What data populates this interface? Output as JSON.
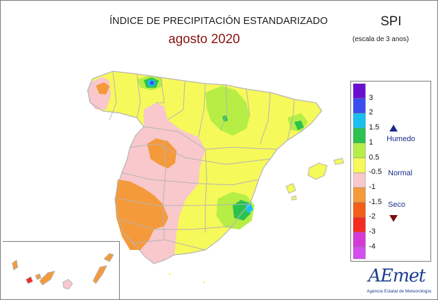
{
  "header": {
    "title": "ÍNDICE DE PRECIPITACIÓN ESTANDARIZADO",
    "subtitle": "agosto 2020",
    "index_name": "SPI",
    "scale": "(escala de 3 anos)"
  },
  "legend": {
    "classes": [
      {
        "label": "3",
        "color": "#6a0fd0"
      },
      {
        "label": "2",
        "color": "#3a4df0"
      },
      {
        "label": "1.5",
        "color": "#18c0f0"
      },
      {
        "label": "1",
        "color": "#2bc24e"
      },
      {
        "label": "0.5",
        "color": "#b6ee46"
      },
      {
        "label": "-0.5",
        "color": "#f6f95a"
      },
      {
        "label": "-1",
        "color": "#f8c8cc"
      },
      {
        "label": "-1.5",
        "color": "#f59a3a"
      },
      {
        "label": "-2",
        "color": "#f45e18"
      },
      {
        "label": "-3",
        "color": "#f52a22"
      },
      {
        "label": "-4",
        "color": "#d63ad6"
      }
    ],
    "extra_swatch_color": "#d34ff0",
    "humid_label": "Humedo",
    "normal_label": "Normal",
    "dry_label": "Seco"
  },
  "logo": {
    "name": "AEmet",
    "agency": "Agencia Estatal de Meteorología"
  },
  "colors": {
    "normal": "#f6f95a",
    "light_green": "#b6ee46",
    "green": "#2bc24e",
    "cyan": "#18c0f0",
    "blue": "#3a4df0",
    "pink": "#f8c8cc",
    "orange": "#f59a3a",
    "red": "#f52a22",
    "boundary": "#b4b4b4"
  }
}
